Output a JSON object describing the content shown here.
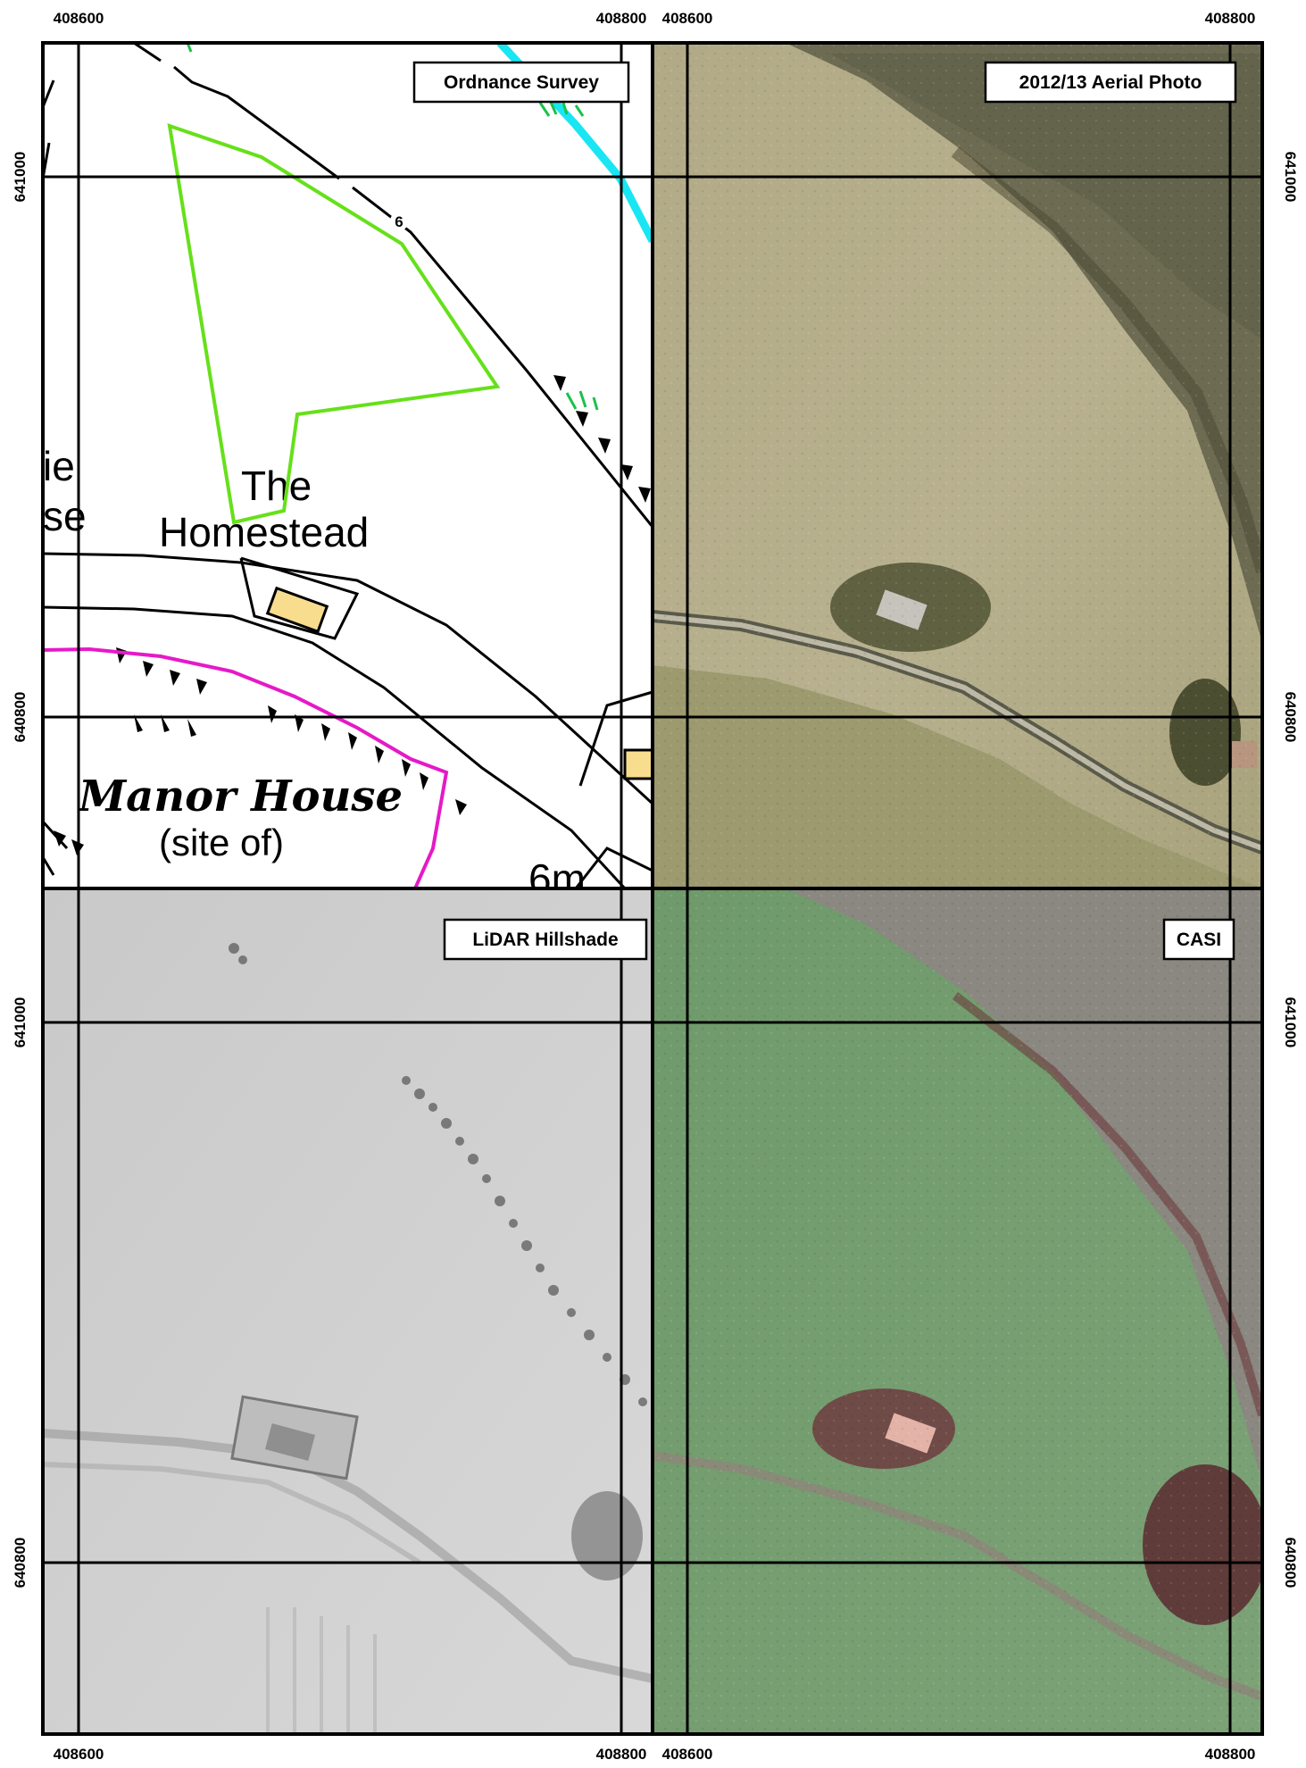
{
  "panels": [
    {
      "id": "os",
      "title": "Ordnance Survey"
    },
    {
      "id": "aerial",
      "title": "2012/13 Aerial Photo"
    },
    {
      "id": "lidar",
      "title": "LiDAR Hillshade"
    },
    {
      "id": "casi",
      "title": "CASI"
    }
  ],
  "site_label": "6",
  "coords": {
    "easting_left": "408600",
    "easting_right": "408800",
    "northing_top": "641000",
    "northing_bottom": "640800"
  },
  "os_labels": {
    "homestead_line1": "The",
    "homestead_line2": "Homestead",
    "manor_line1": "Manor House",
    "manor_line2": "(site of)",
    "partial_line1": "ie",
    "partial_line2": "se",
    "height": "6m"
  },
  "colors": {
    "site_outline": "#66e01a",
    "boundary": "#e619c8",
    "stream": "#19e6f2",
    "building": "#f9dd8f"
  }
}
